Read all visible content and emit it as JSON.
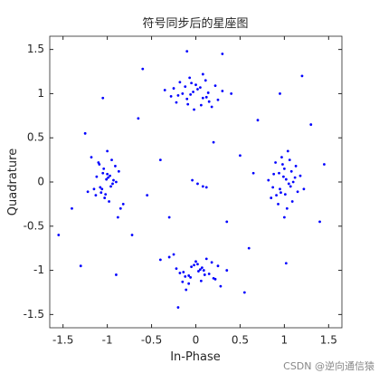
{
  "chart_data": {
    "type": "scatter",
    "title": "符号同步后的星座图",
    "xlabel": "In-Phase",
    "ylabel": "Quadrature",
    "watermark": "CSDN @逆向通信猿",
    "xlim": [
      -1.65,
      1.65
    ],
    "ylim": [
      -1.65,
      1.65
    ],
    "xticks": [
      -1.5,
      -1,
      -0.5,
      0,
      0.5,
      1,
      1.5
    ],
    "yticks": [
      -1.5,
      -1,
      -0.5,
      0,
      0.5,
      1,
      1.5
    ],
    "series": [
      {
        "color": "#0000ff",
        "x": [
          1.02,
          0.95,
          1.08,
          0.91,
          1.12,
          0.98,
          1.05,
          0.88,
          1.15,
          0.93,
          1.0,
          1.07,
          0.97,
          1.1,
          0.85,
          1.03,
          0.9,
          1.18,
          0.96,
          1.04,
          0.82,
          1.22,
          1.0,
          0.94,
          1.09,
          0.99,
          1.13,
          0.87,
          1.06,
          1.01,
          -0.03,
          0.08,
          -0.12,
          0.15,
          -0.05,
          -0.2,
          0.02,
          -0.09,
          0.11,
          0.25,
          -0.15,
          0.05,
          -0.28,
          0.0,
          0.18,
          0.3,
          -0.22,
          -0.07,
          0.12,
          -0.35,
          -0.02,
          0.08,
          0.4,
          -0.1,
          0.22,
          -0.06,
          -0.18,
          0.06,
          -0.25,
          0.14,
          -1.02,
          -0.95,
          -1.08,
          -0.91,
          -1.12,
          -0.98,
          -1.05,
          -0.88,
          -1.15,
          -0.93,
          -1.0,
          -1.07,
          -0.97,
          -1.1,
          -0.85,
          -1.03,
          -0.9,
          -1.18,
          -0.96,
          -1.04,
          -0.82,
          -1.22,
          -1.0,
          -0.94,
          -1.09,
          -0.99,
          -1.13,
          -0.87,
          -1.06,
          -1.01,
          0.03,
          -0.08,
          0.12,
          -0.15,
          0.05,
          0.2,
          -0.02,
          0.09,
          -0.11,
          -0.25,
          0.15,
          -0.05,
          0.28,
          0.0,
          -0.18,
          -0.3,
          0.22,
          0.07,
          -0.12,
          0.35,
          0.02,
          -0.08,
          -0.4,
          0.1,
          -0.22,
          0.06,
          0.18,
          -0.06,
          0.25,
          -0.14,
          0.7,
          -0.65,
          0.6,
          -0.72,
          1.45,
          -1.4,
          0.3,
          -0.2,
          0.95,
          -1.05,
          -0.9,
          1.02,
          0.5,
          -0.4,
          0.35,
          -0.3,
          1.3,
          -1.25,
          0.55,
          -0.6,
          -1.55,
          1.4,
          -0.1,
          0.08,
          0.02,
          -0.04,
          0.12,
          0.2,
          -0.55,
          0.65,
          -1.3,
          1.2
        ],
        "y": [
          0.03,
          -0.08,
          0.12,
          -0.15,
          0.05,
          0.2,
          -0.02,
          0.09,
          -0.11,
          -0.25,
          0.15,
          -0.05,
          0.28,
          0.0,
          -0.18,
          -0.3,
          0.22,
          0.07,
          -0.12,
          0.35,
          0.02,
          -0.08,
          -0.4,
          0.1,
          -0.22,
          0.06,
          0.18,
          -0.06,
          0.25,
          -0.14,
          1.02,
          0.95,
          1.08,
          0.91,
          1.12,
          0.98,
          1.05,
          0.88,
          1.15,
          0.93,
          1.0,
          1.07,
          0.97,
          1.1,
          0.85,
          1.03,
          0.9,
          1.18,
          0.96,
          1.04,
          0.82,
          1.22,
          1.0,
          0.94,
          1.09,
          0.99,
          1.13,
          0.87,
          1.06,
          1.01,
          -0.14,
          0.25,
          -0.06,
          0.18,
          0.06,
          -0.22,
          0.1,
          -0.4,
          -0.08,
          0.02,
          0.35,
          -0.12,
          0.07,
          0.22,
          -0.3,
          -0.18,
          0.0,
          0.28,
          -0.05,
          0.15,
          -0.25,
          -0.11,
          0.09,
          -0.02,
          0.2,
          0.05,
          -0.15,
          0.12,
          -0.08,
          0.03,
          -1.01,
          -1.06,
          -0.87,
          -1.13,
          -0.99,
          -1.09,
          -0.94,
          -1.0,
          -1.22,
          -0.82,
          -1.04,
          -0.96,
          -1.18,
          -0.9,
          -1.03,
          -0.85,
          -1.1,
          -0.97,
          -1.07,
          -1.0,
          -0.93,
          -1.15,
          -0.88,
          -1.05,
          -0.98,
          -1.12,
          -0.91,
          -1.08,
          -0.95,
          -1.02,
          0.7,
          0.72,
          -0.75,
          -0.6,
          0.2,
          -0.3,
          1.45,
          -1.42,
          1.0,
          0.95,
          -1.05,
          -0.92,
          0.3,
          0.25,
          -0.45,
          -0.4,
          0.65,
          0.55,
          -1.25,
          1.28,
          -0.6,
          -0.45,
          1.48,
          -0.05,
          -0.02,
          0.02,
          -0.06,
          0.45,
          -0.15,
          0.1,
          -0.95,
          1.2
        ]
      }
    ]
  }
}
